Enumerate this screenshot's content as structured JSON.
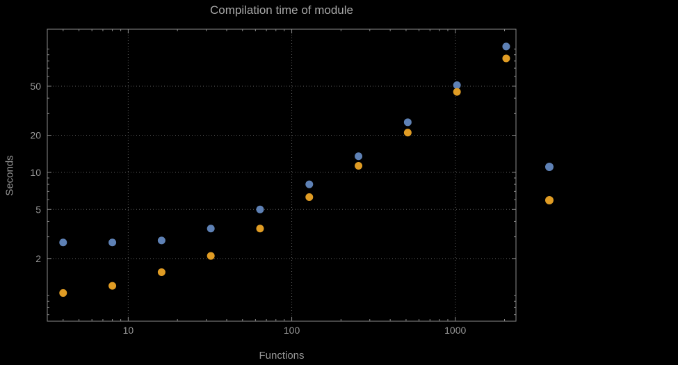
{
  "chart_data": {
    "type": "scatter",
    "title": "Compilation time of module",
    "xlabel": "Functions",
    "ylabel": "Seconds",
    "x_scale": "log",
    "y_scale": "log",
    "x_range": [
      3.2,
      2350
    ],
    "y_range": [
      0.62,
      145
    ],
    "grid": "dotted",
    "x": [
      4,
      8,
      16,
      32,
      64,
      128,
      256,
      512,
      1024,
      2048
    ],
    "series": [
      {
        "name": "series-blue",
        "color": "#5E81B5",
        "values": [
          2.7,
          2.7,
          2.8,
          3.5,
          5.0,
          8.0,
          13.5,
          25.5,
          51,
          105
        ]
      },
      {
        "name": "series-orange",
        "color": "#E09C24",
        "values": [
          1.05,
          1.2,
          1.55,
          2.1,
          3.5,
          6.3,
          11.3,
          21,
          45,
          84
        ]
      }
    ],
    "x_ticks": [
      {
        "value": 10,
        "label": "10"
      },
      {
        "value": 100,
        "label": "100"
      },
      {
        "value": 1000,
        "label": "1000"
      }
    ],
    "y_ticks": [
      {
        "value": 2,
        "label": "2"
      },
      {
        "value": 5,
        "label": "5"
      },
      {
        "value": 10,
        "label": "10"
      },
      {
        "value": 20,
        "label": "20"
      },
      {
        "value": 50,
        "label": "50"
      }
    ],
    "colors": {
      "background": "#000000",
      "frame": "#8c8c8c",
      "grid": "#5f5f5f",
      "title_text": "#a8a8a8",
      "axis_text": "#979797"
    },
    "legend_position": "right"
  },
  "legend": {
    "markers": [
      {
        "series": "series-blue",
        "color": "#5E81B5"
      },
      {
        "series": "series-orange",
        "color": "#E09C24"
      }
    ]
  }
}
